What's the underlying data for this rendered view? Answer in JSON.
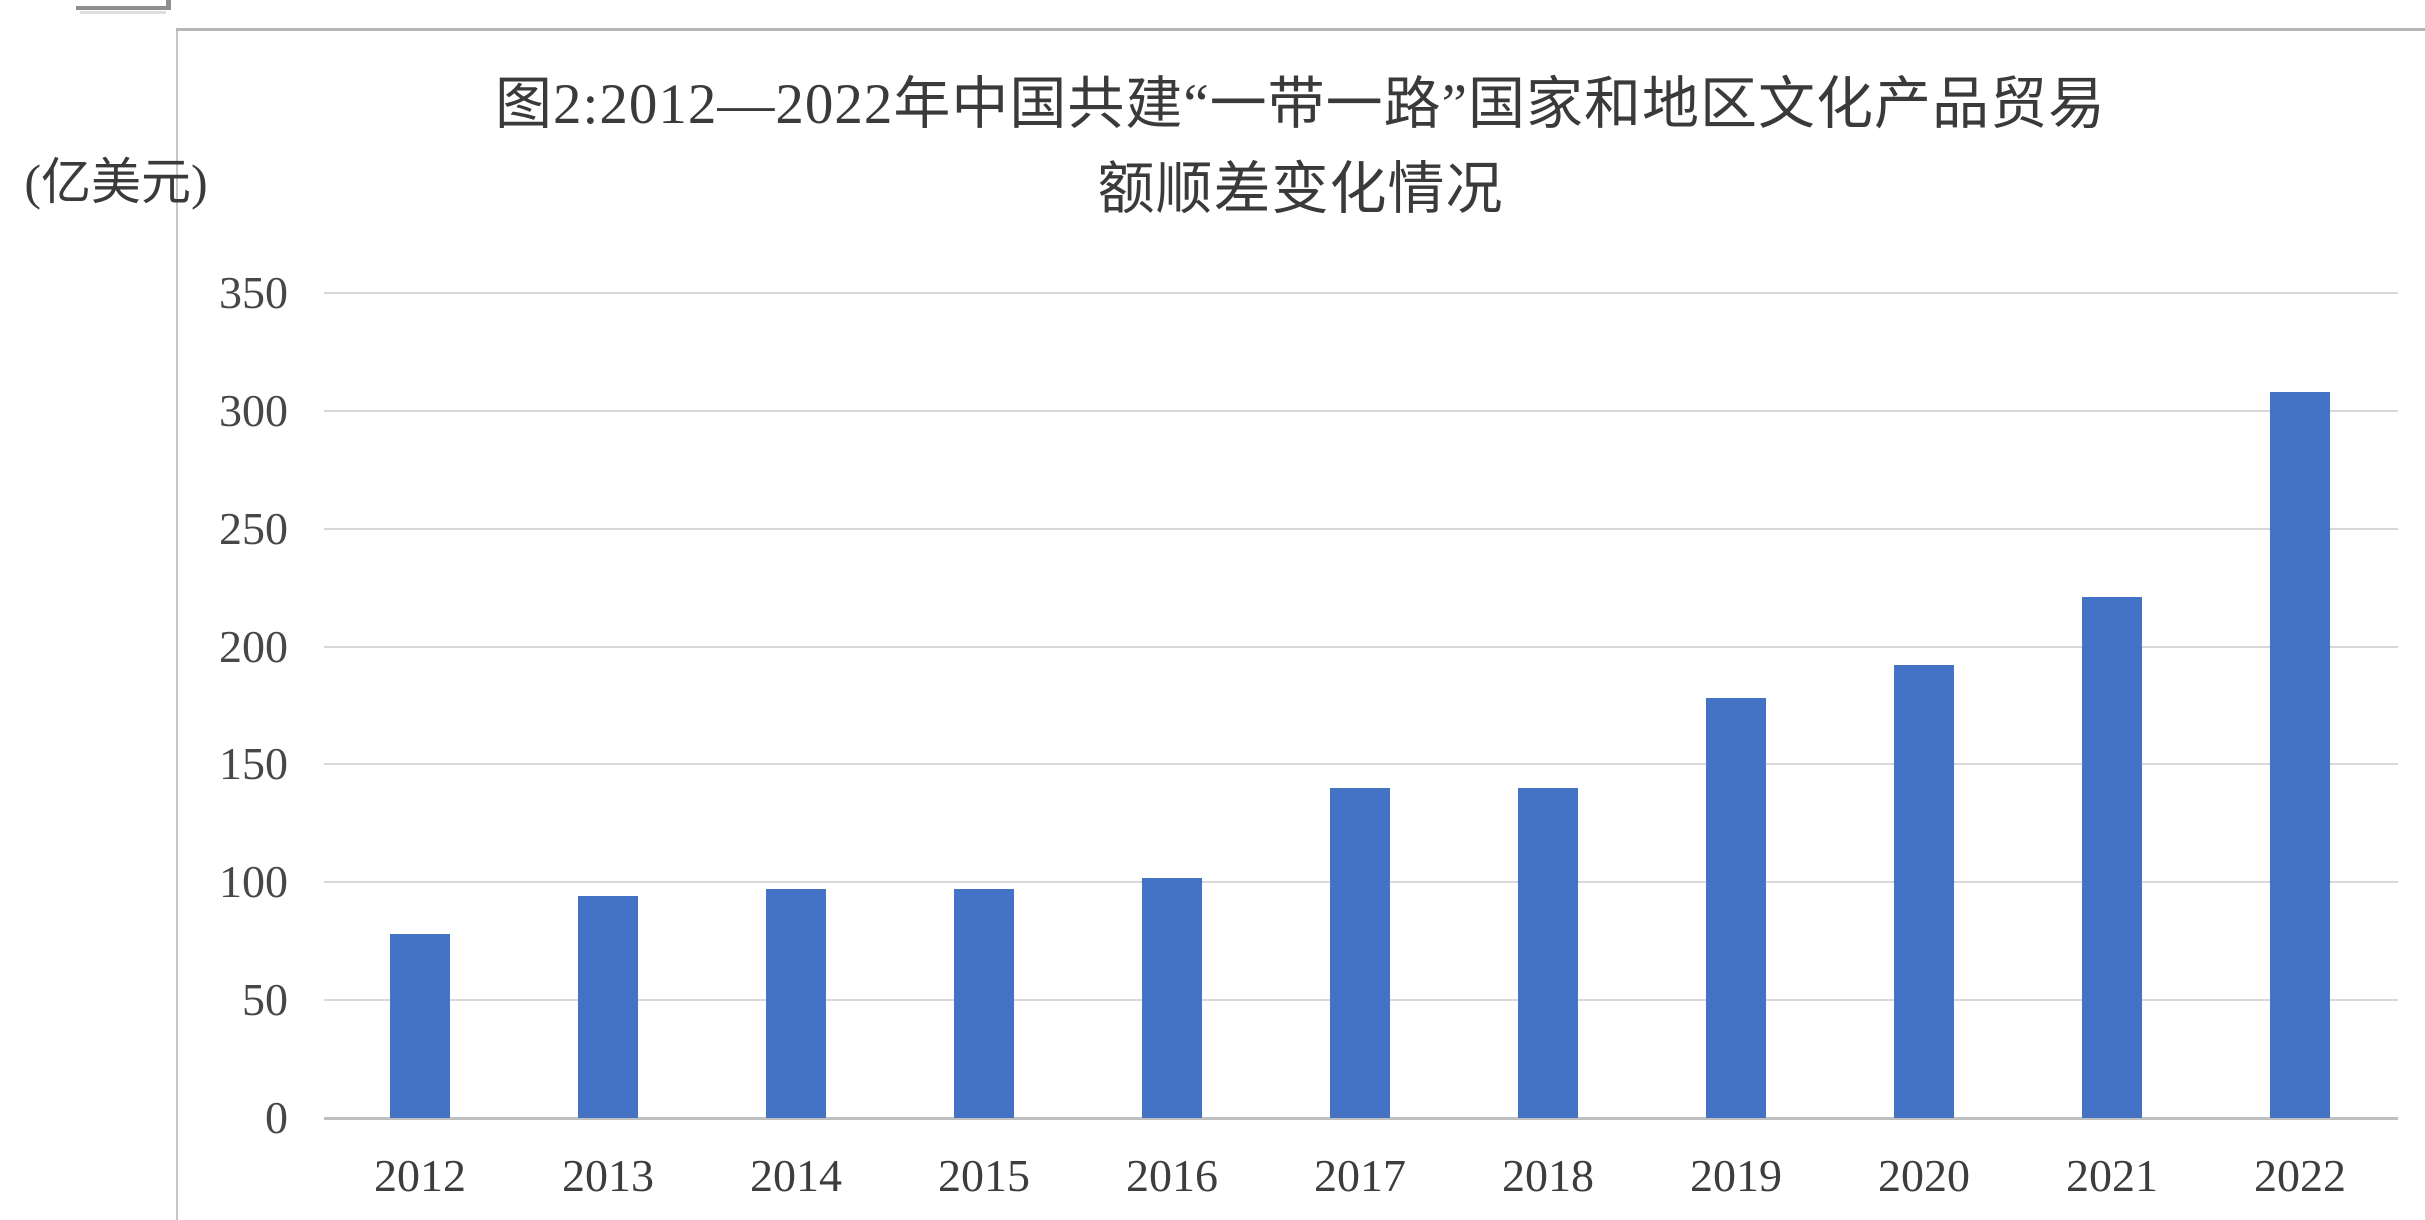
{
  "chart_data": {
    "type": "bar",
    "title": "图2:2012—2022年中国共建“一带一路”国家和地区文化产品贸易额顺差变化情况",
    "title_line1": "图2:2012—2022年中国共建“一带一路”国家和地区文化产品贸易",
    "title_line2": "额顺差变化情况",
    "ylabel": "(亿美元)",
    "xlabel": "",
    "categories": [
      "2012",
      "2013",
      "2014",
      "2015",
      "2016",
      "2017",
      "2018",
      "2019",
      "2020",
      "2021",
      "2022"
    ],
    "values": [
      78,
      94,
      97,
      97,
      102,
      140,
      140,
      178,
      192,
      221,
      308
    ],
    "ylim": [
      0,
      350
    ],
    "yticks": [
      350,
      300,
      250,
      200,
      150,
      100,
      50,
      0
    ],
    "grid": true,
    "legend": false,
    "bar_color": "#4472C4",
    "gridline_color": "#d8d8d8",
    "axis_line_color": "#bfbfbf",
    "text_color": "#3d3d3d"
  }
}
